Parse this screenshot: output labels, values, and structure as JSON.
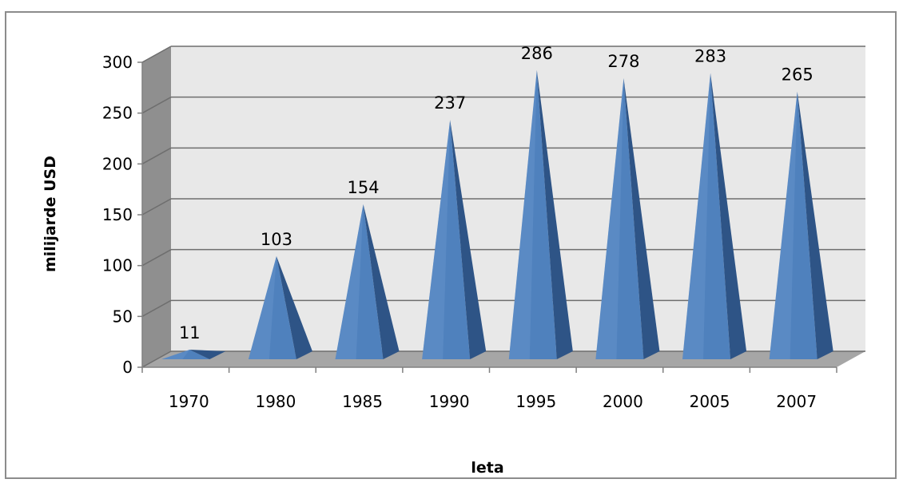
{
  "chart_data": {
    "type": "bar",
    "bar_shape": "pyramid-3d",
    "categories": [
      "1970",
      "1980",
      "1985",
      "1990",
      "1995",
      "2000",
      "2005",
      "2007"
    ],
    "series": [
      {
        "values": [
          11,
          103,
          154,
          237,
          286,
          278,
          283,
          265
        ]
      }
    ],
    "data_labels": [
      "11",
      "103",
      "154",
      "237",
      "286",
      "278",
      "283",
      "265"
    ],
    "title": "",
    "xlabel": "leta",
    "ylabel": "milijarde USD",
    "ylim": [
      0,
      300
    ],
    "yticks": [
      0,
      50,
      100,
      150,
      200,
      250,
      300
    ],
    "grid": true,
    "legend": "none",
    "colors": {
      "bar_front": "#4f81bd",
      "bar_side": "#2e5486",
      "bar_highlight": "#6f9ad2",
      "wall": "#e8e8e8",
      "side_wall": "#8f8f8f",
      "floor": "#a6a6a6",
      "gridline": "#6e6e6e"
    }
  }
}
